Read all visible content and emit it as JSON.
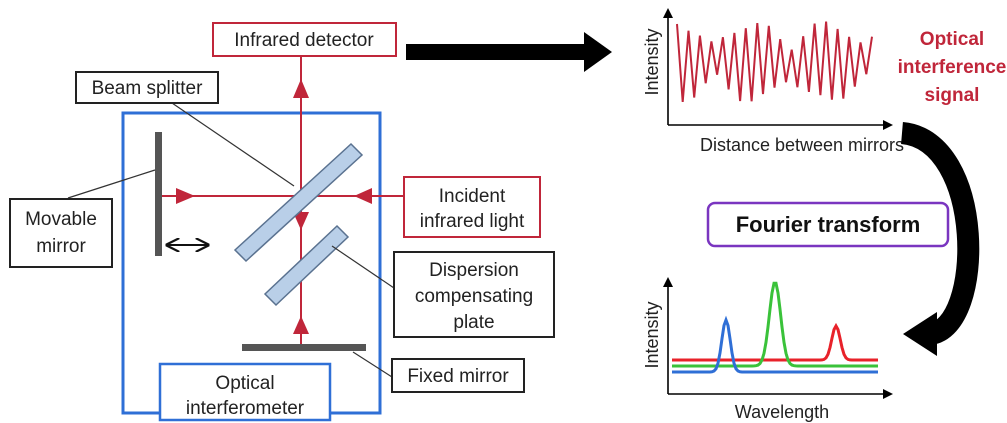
{
  "labels": {
    "infrared_detector": "Infrared detector",
    "beam_splitter": "Beam splitter",
    "movable_mirror_line1": "Movable",
    "movable_mirror_line2": "mirror",
    "incident_light_line1": "Incident",
    "incident_light_line2": "infrared light",
    "dispersion_line1": "Dispersion",
    "dispersion_line2": "compensating",
    "dispersion_line3": "plate",
    "fixed_mirror": "Fixed mirror",
    "interferometer_line1": "Optical",
    "interferometer_line2": "interferometer",
    "signal_line1": "Optical",
    "signal_line2": "interference",
    "signal_line3": "signal",
    "fourier_transform": "Fourier transform"
  },
  "interferogram": {
    "ylabel": "Intensity",
    "xlabel": "Distance between mirrors",
    "color": "#c0263a"
  },
  "spectrum": {
    "ylabel": "Intensity",
    "xlabel": "Wavelength",
    "series": [
      {
        "color": "#e8222a"
      },
      {
        "color": "#3ac23a"
      },
      {
        "color": "#2f6fd6"
      }
    ]
  },
  "colors": {
    "beam": "#c0263a",
    "interferometer_frame": "#2f6fd6",
    "fourier_box": "#7a35c0",
    "plate_fill": "#b9cfe8",
    "plate_stroke": "#5a7290",
    "mirror": "#555555"
  }
}
